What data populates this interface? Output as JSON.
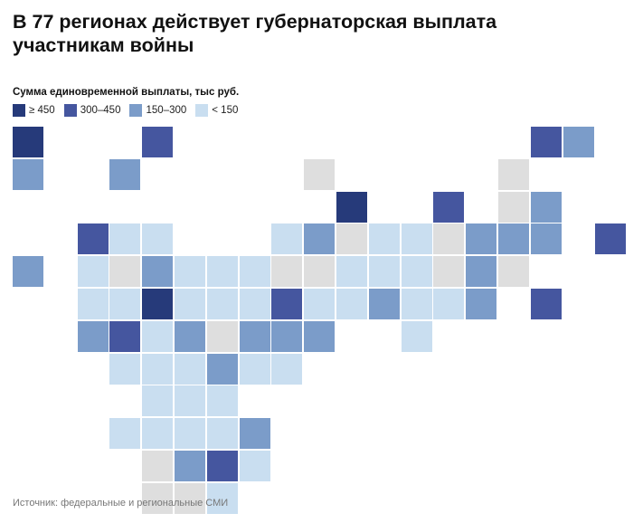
{
  "title": "В 77 регионах действует губернаторская выплата участникам войны",
  "legend": {
    "title": "Сумма единовременной выплаты, тыс руб.",
    "items": [
      {
        "key": "c1",
        "label": "≥ 450",
        "color": "#263a7a"
      },
      {
        "key": "c2",
        "label": "300–450",
        "color": "#45569f"
      },
      {
        "key": "c3",
        "label": "150–300",
        "color": "#7b9cc9"
      },
      {
        "key": "c4",
        "label": "< 150",
        "color": "#c9def0"
      }
    ],
    "no_data_color": "#dedede"
  },
  "source": "Источник: федеральные и региональные СМИ",
  "tiles": [
    {
      "row": 0,
      "col": 0,
      "cat": "c1"
    },
    {
      "row": 0,
      "col": 4,
      "cat": "c2"
    },
    {
      "row": 0,
      "col": 16,
      "cat": "c2"
    },
    {
      "row": 0,
      "col": 17,
      "cat": "c3"
    },
    {
      "row": 1,
      "col": 0,
      "cat": "c3"
    },
    {
      "row": 1,
      "col": 3,
      "cat": "c3"
    },
    {
      "row": 1,
      "col": 9,
      "cat": "nd"
    },
    {
      "row": 1,
      "col": 15,
      "cat": "nd"
    },
    {
      "row": 2,
      "col": 10,
      "cat": "c1"
    },
    {
      "row": 2,
      "col": 13,
      "cat": "c2"
    },
    {
      "row": 2,
      "col": 15,
      "cat": "nd"
    },
    {
      "row": 2,
      "col": 16,
      "cat": "c3"
    },
    {
      "row": 3,
      "col": 2,
      "cat": "c2"
    },
    {
      "row": 3,
      "col": 3,
      "cat": "c4"
    },
    {
      "row": 3,
      "col": 4,
      "cat": "c4"
    },
    {
      "row": 3,
      "col": 8,
      "cat": "c4"
    },
    {
      "row": 3,
      "col": 9,
      "cat": "c3"
    },
    {
      "row": 3,
      "col": 10,
      "cat": "nd"
    },
    {
      "row": 3,
      "col": 11,
      "cat": "c4"
    },
    {
      "row": 3,
      "col": 12,
      "cat": "c4"
    },
    {
      "row": 3,
      "col": 13,
      "cat": "nd"
    },
    {
      "row": 3,
      "col": 14,
      "cat": "c3"
    },
    {
      "row": 3,
      "col": 15,
      "cat": "c3"
    },
    {
      "row": 3,
      "col": 16,
      "cat": "c3"
    },
    {
      "row": 3,
      "col": 18,
      "cat": "c2"
    },
    {
      "row": 4,
      "col": 0,
      "cat": "c3"
    },
    {
      "row": 4,
      "col": 2,
      "cat": "c4"
    },
    {
      "row": 4,
      "col": 3,
      "cat": "nd"
    },
    {
      "row": 4,
      "col": 4,
      "cat": "c3"
    },
    {
      "row": 4,
      "col": 5,
      "cat": "c4"
    },
    {
      "row": 4,
      "col": 6,
      "cat": "c4"
    },
    {
      "row": 4,
      "col": 7,
      "cat": "c4"
    },
    {
      "row": 4,
      "col": 8,
      "cat": "nd"
    },
    {
      "row": 4,
      "col": 9,
      "cat": "nd"
    },
    {
      "row": 4,
      "col": 10,
      "cat": "c4"
    },
    {
      "row": 4,
      "col": 11,
      "cat": "c4"
    },
    {
      "row": 4,
      "col": 12,
      "cat": "c4"
    },
    {
      "row": 4,
      "col": 13,
      "cat": "nd"
    },
    {
      "row": 4,
      "col": 14,
      "cat": "c3"
    },
    {
      "row": 4,
      "col": 15,
      "cat": "nd"
    },
    {
      "row": 5,
      "col": 2,
      "cat": "c4"
    },
    {
      "row": 5,
      "col": 3,
      "cat": "c4"
    },
    {
      "row": 5,
      "col": 4,
      "cat": "c1"
    },
    {
      "row": 5,
      "col": 5,
      "cat": "c4"
    },
    {
      "row": 5,
      "col": 6,
      "cat": "c4"
    },
    {
      "row": 5,
      "col": 7,
      "cat": "c4"
    },
    {
      "row": 5,
      "col": 8,
      "cat": "c2"
    },
    {
      "row": 5,
      "col": 9,
      "cat": "c4"
    },
    {
      "row": 5,
      "col": 10,
      "cat": "c4"
    },
    {
      "row": 5,
      "col": 11,
      "cat": "c3"
    },
    {
      "row": 5,
      "col": 12,
      "cat": "c4"
    },
    {
      "row": 5,
      "col": 13,
      "cat": "c4"
    },
    {
      "row": 5,
      "col": 14,
      "cat": "c3"
    },
    {
      "row": 5,
      "col": 16,
      "cat": "c2"
    },
    {
      "row": 6,
      "col": 2,
      "cat": "c3"
    },
    {
      "row": 6,
      "col": 3,
      "cat": "c2"
    },
    {
      "row": 6,
      "col": 4,
      "cat": "c4"
    },
    {
      "row": 6,
      "col": 5,
      "cat": "c3"
    },
    {
      "row": 6,
      "col": 6,
      "cat": "nd"
    },
    {
      "row": 6,
      "col": 7,
      "cat": "c3"
    },
    {
      "row": 6,
      "col": 8,
      "cat": "c3"
    },
    {
      "row": 6,
      "col": 9,
      "cat": "c3"
    },
    {
      "row": 6,
      "col": 12,
      "cat": "c4"
    },
    {
      "row": 7,
      "col": 3,
      "cat": "c4"
    },
    {
      "row": 7,
      "col": 4,
      "cat": "c4"
    },
    {
      "row": 7,
      "col": 5,
      "cat": "c4"
    },
    {
      "row": 7,
      "col": 6,
      "cat": "c3"
    },
    {
      "row": 7,
      "col": 7,
      "cat": "c4"
    },
    {
      "row": 7,
      "col": 8,
      "cat": "c4"
    },
    {
      "row": 8,
      "col": 4,
      "cat": "c4"
    },
    {
      "row": 8,
      "col": 5,
      "cat": "c4"
    },
    {
      "row": 8,
      "col": 6,
      "cat": "c4"
    },
    {
      "row": 9,
      "col": 3,
      "cat": "c4"
    },
    {
      "row": 9,
      "col": 4,
      "cat": "c4"
    },
    {
      "row": 9,
      "col": 5,
      "cat": "c4"
    },
    {
      "row": 9,
      "col": 6,
      "cat": "c4"
    },
    {
      "row": 9,
      "col": 7,
      "cat": "c3"
    },
    {
      "row": 10,
      "col": 4,
      "cat": "nd"
    },
    {
      "row": 10,
      "col": 5,
      "cat": "c3"
    },
    {
      "row": 10,
      "col": 6,
      "cat": "c2"
    },
    {
      "row": 10,
      "col": 7,
      "cat": "c4"
    },
    {
      "row": 11,
      "col": 4,
      "cat": "nd"
    },
    {
      "row": 11,
      "col": 5,
      "cat": "nd"
    },
    {
      "row": 11,
      "col": 6,
      "cat": "c4"
    }
  ]
}
